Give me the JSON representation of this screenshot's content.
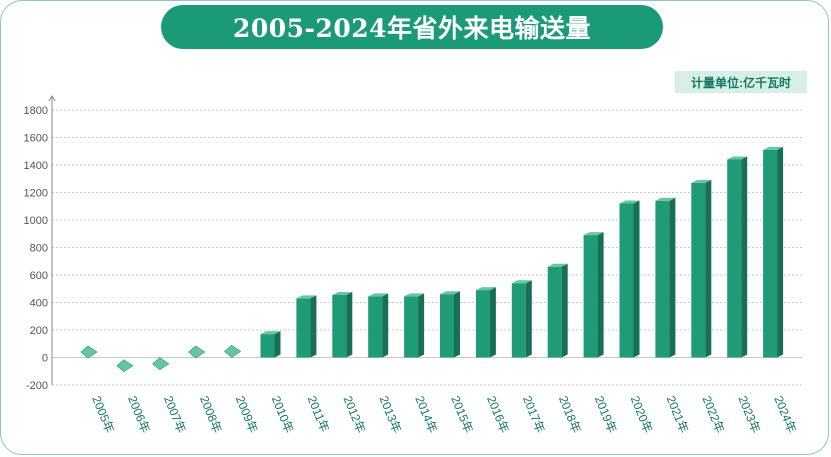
{
  "title": "2005-2024年省外来电输送量",
  "unit_label": "计量单位:亿千瓦时",
  "colors": {
    "accent": "#1b9a77",
    "bar_front": "#1f9b75",
    "bar_side": "#176f55",
    "bar_top": "#67c6a2",
    "axis_text": "#555555",
    "grid": "#c8c8c8",
    "badge_bg": "#d7efe6",
    "x_label": "#14795c"
  },
  "chart_data": {
    "type": "bar",
    "categories": [
      "2005年",
      "2006年",
      "2007年",
      "2008年",
      "2009年",
      "2010年",
      "2011年",
      "2012年",
      "2013年",
      "2014年",
      "2015年",
      "2016年",
      "2017年",
      "2018年",
      "2019年",
      "2020年",
      "2021年",
      "2022年",
      "2023年",
      "2024年"
    ],
    "series": [
      {
        "values": [
          40,
          -60,
          -45,
          40,
          45,
          170,
          430,
          455,
          445,
          445,
          460,
          490,
          540,
          660,
          890,
          1120,
          1140,
          1270,
          1440,
          1510
        ]
      }
    ],
    "y_ticks": [
      1800,
      1600,
      1400,
      1200,
      1000,
      800,
      600,
      400,
      200,
      0,
      -200
    ],
    "ylim": [
      -200,
      1800
    ],
    "grid": true,
    "xlabel": "",
    "ylabel": ""
  }
}
